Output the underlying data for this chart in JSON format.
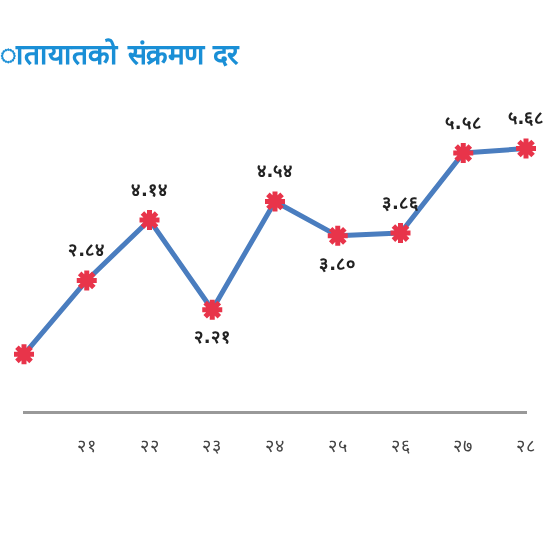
{
  "chart_data": {
    "type": "line",
    "title": "ातायातको संक्रमण दर",
    "categories": [
      null,
      "२१",
      "२२",
      "२३",
      "२४",
      "२५",
      "२६",
      "२७",
      "२८"
    ],
    "series": [
      {
        "color": "#4a7dbf",
        "values": [
          1.25,
          2.84,
          4.14,
          2.21,
          4.54,
          3.8,
          3.86,
          5.58,
          5.68
        ],
        "value_labels": [
          null,
          "२.८४",
          "४.१४",
          "२.२१",
          "४.५४",
          "३.८०",
          "३.८६",
          "५.५८",
          "५.६८"
        ]
      }
    ],
    "marker": "cross",
    "grid": false,
    "legend": false,
    "tick_labels": "x"
  }
}
